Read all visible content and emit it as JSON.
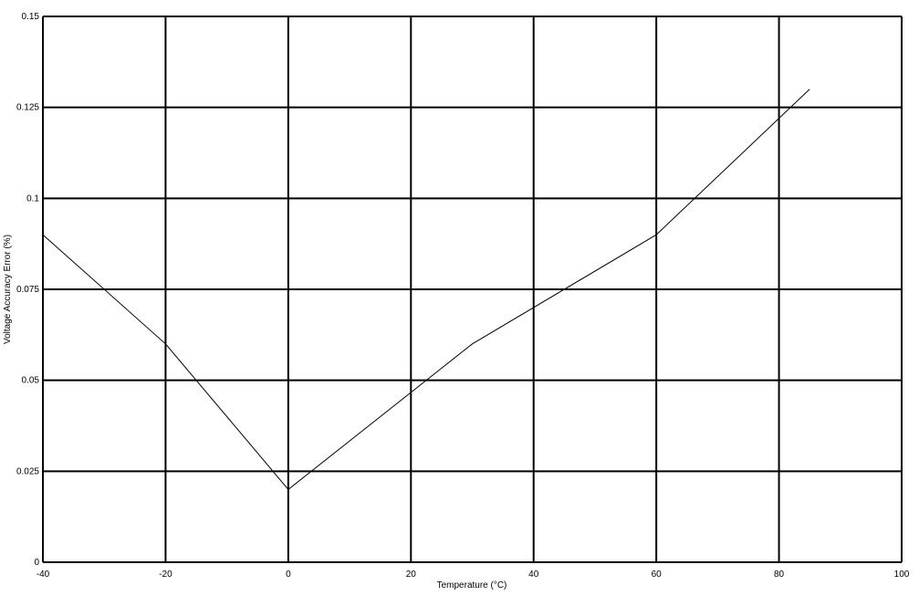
{
  "chart_data": {
    "type": "line",
    "title": "",
    "xlabel": "Temperature (°C)",
    "ylabel": "Voltage Accuracy Error (%)",
    "xlim": [
      -40,
      100
    ],
    "ylim": [
      0,
      0.15
    ],
    "x_ticks": [
      "-40",
      "-20",
      "0",
      "20",
      "40",
      "60",
      "80",
      "100"
    ],
    "y_ticks": [
      "0",
      "0.025",
      "0.05",
      "0.075",
      "0.1",
      "0.125",
      "0.15"
    ],
    "grid": true,
    "series": [
      {
        "x": [
          -40,
          -20,
          0,
          30,
          60,
          85
        ],
        "y": [
          0.09,
          0.06,
          0.02,
          0.06,
          0.09,
          0.13
        ],
        "color": "#000000"
      }
    ]
  }
}
